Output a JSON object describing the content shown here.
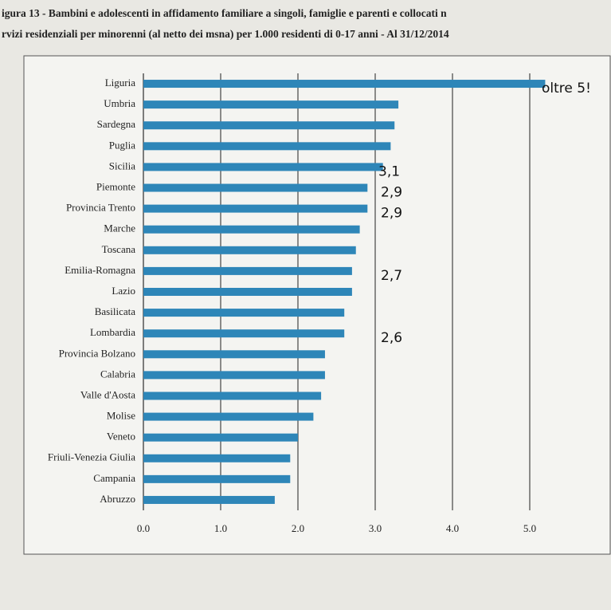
{
  "chart_data": {
    "type": "barh",
    "title": "igura 13 - Bambini e adolescenti in affidamento familiare a singoli, famiglie e parenti e collocati n",
    "subtitle": "rvizi residenziali per minorenni (al netto dei msna) per 1.000 residenti di 0-17 anni - Al 31/12/2014",
    "categories": [
      "Liguria",
      "Umbria",
      "Sardegna",
      "Puglia",
      "Sicilia",
      "Piemonte",
      "Provincia Trento",
      "Marche",
      "Toscana",
      "Emilia-Romagna",
      "Lazio",
      "Basilicata",
      "Lombardia",
      "Provincia Bolzano",
      "Calabria",
      "Valle d'Aosta",
      "Molise",
      "Veneto",
      "Friuli-Venezia Giulia",
      "Campania",
      "Abruzzo"
    ],
    "values": [
      5.2,
      3.3,
      3.25,
      3.2,
      3.1,
      2.9,
      2.9,
      2.8,
      2.75,
      2.7,
      2.7,
      2.6,
      2.6,
      2.35,
      2.35,
      2.3,
      2.2,
      2.0,
      1.9,
      1.9,
      1.7
    ],
    "color": "#2e86b8",
    "xlim": [
      0,
      6
    ],
    "xticks": [
      {
        "value": 0,
        "label": "0.0"
      },
      {
        "value": 1,
        "label": "1.0"
      },
      {
        "value": 2,
        "label": "2.0"
      },
      {
        "value": 3,
        "label": "3.0"
      },
      {
        "value": 4,
        "label": "4.0"
      },
      {
        "value": 5,
        "label": "5.0"
      }
    ],
    "grid": true,
    "annotations": [
      "oltre 5!",
      "3,1",
      "2,9",
      "2,9",
      "2,7",
      "2,6"
    ]
  }
}
